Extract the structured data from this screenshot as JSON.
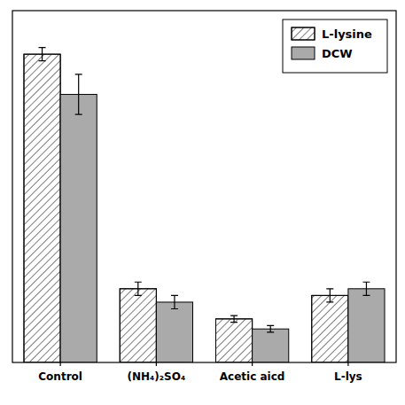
{
  "chart_data": {
    "type": "bar",
    "categories": [
      "Control",
      "(NH₄)₂SO₄",
      "Acetic aicd",
      "L-lys"
    ],
    "series": [
      {
        "name": "L-lysine",
        "color": "white",
        "values": [
          0.92,
          0.22,
          0.13,
          0.2
        ],
        "errors": [
          0.02,
          0.02,
          0.01,
          0.02
        ]
      },
      {
        "name": "DCW",
        "color": "#aaaaaa",
        "values": [
          0.8,
          0.18,
          0.1,
          0.22
        ],
        "errors": [
          0.06,
          0.02,
          0.01,
          0.02
        ]
      }
    ],
    "ylim": [
      0,
      1.05
    ],
    "tick_labels": "x",
    "legend": "upper right"
  }
}
